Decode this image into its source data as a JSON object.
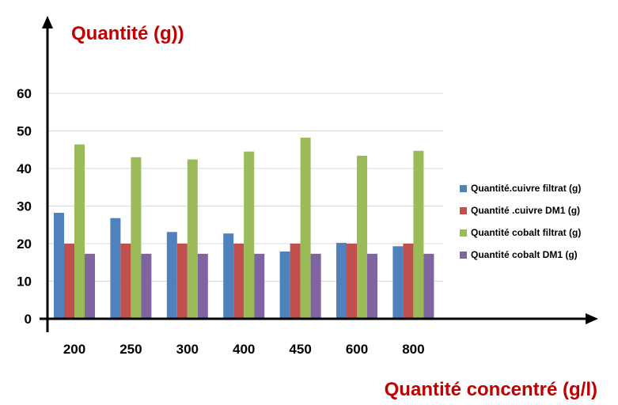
{
  "chart_data": {
    "type": "bar",
    "title": "",
    "ylabel": "Quantité (g))",
    "xlabel": "Quantité concentré (g/l)",
    "categories": [
      "200",
      "250",
      "300",
      "400",
      "450",
      "600",
      "800"
    ],
    "ylim": [
      0,
      60
    ],
    "yticks": [
      "0",
      "10",
      "20",
      "30",
      "40",
      "50",
      "60"
    ],
    "grid": true,
    "legend_position": "right",
    "series": [
      {
        "name": "Quantité.cuivre filtrat (g)",
        "color": "#4F81BD",
        "values": [
          28.2,
          26.8,
          23.1,
          22.7,
          17.9,
          20.2,
          19.3
        ]
      },
      {
        "name": "Quantité .cuivre DM1 (g)",
        "color": "#C0504D",
        "values": [
          20.0,
          20.0,
          20.0,
          20.0,
          20.0,
          20.0,
          20.0
        ]
      },
      {
        "name": "Quantité  cobalt filtrat (g)",
        "color": "#9BBB59",
        "values": [
          46.4,
          43.0,
          42.4,
          44.5,
          48.2,
          43.4,
          44.7
        ]
      },
      {
        "name": "Quantité   cobalt DM1 (g)",
        "color": "#8064A2",
        "values": [
          17.3,
          17.3,
          17.3,
          17.3,
          17.3,
          17.3,
          17.3
        ]
      }
    ],
    "title_color": "#C00000"
  }
}
